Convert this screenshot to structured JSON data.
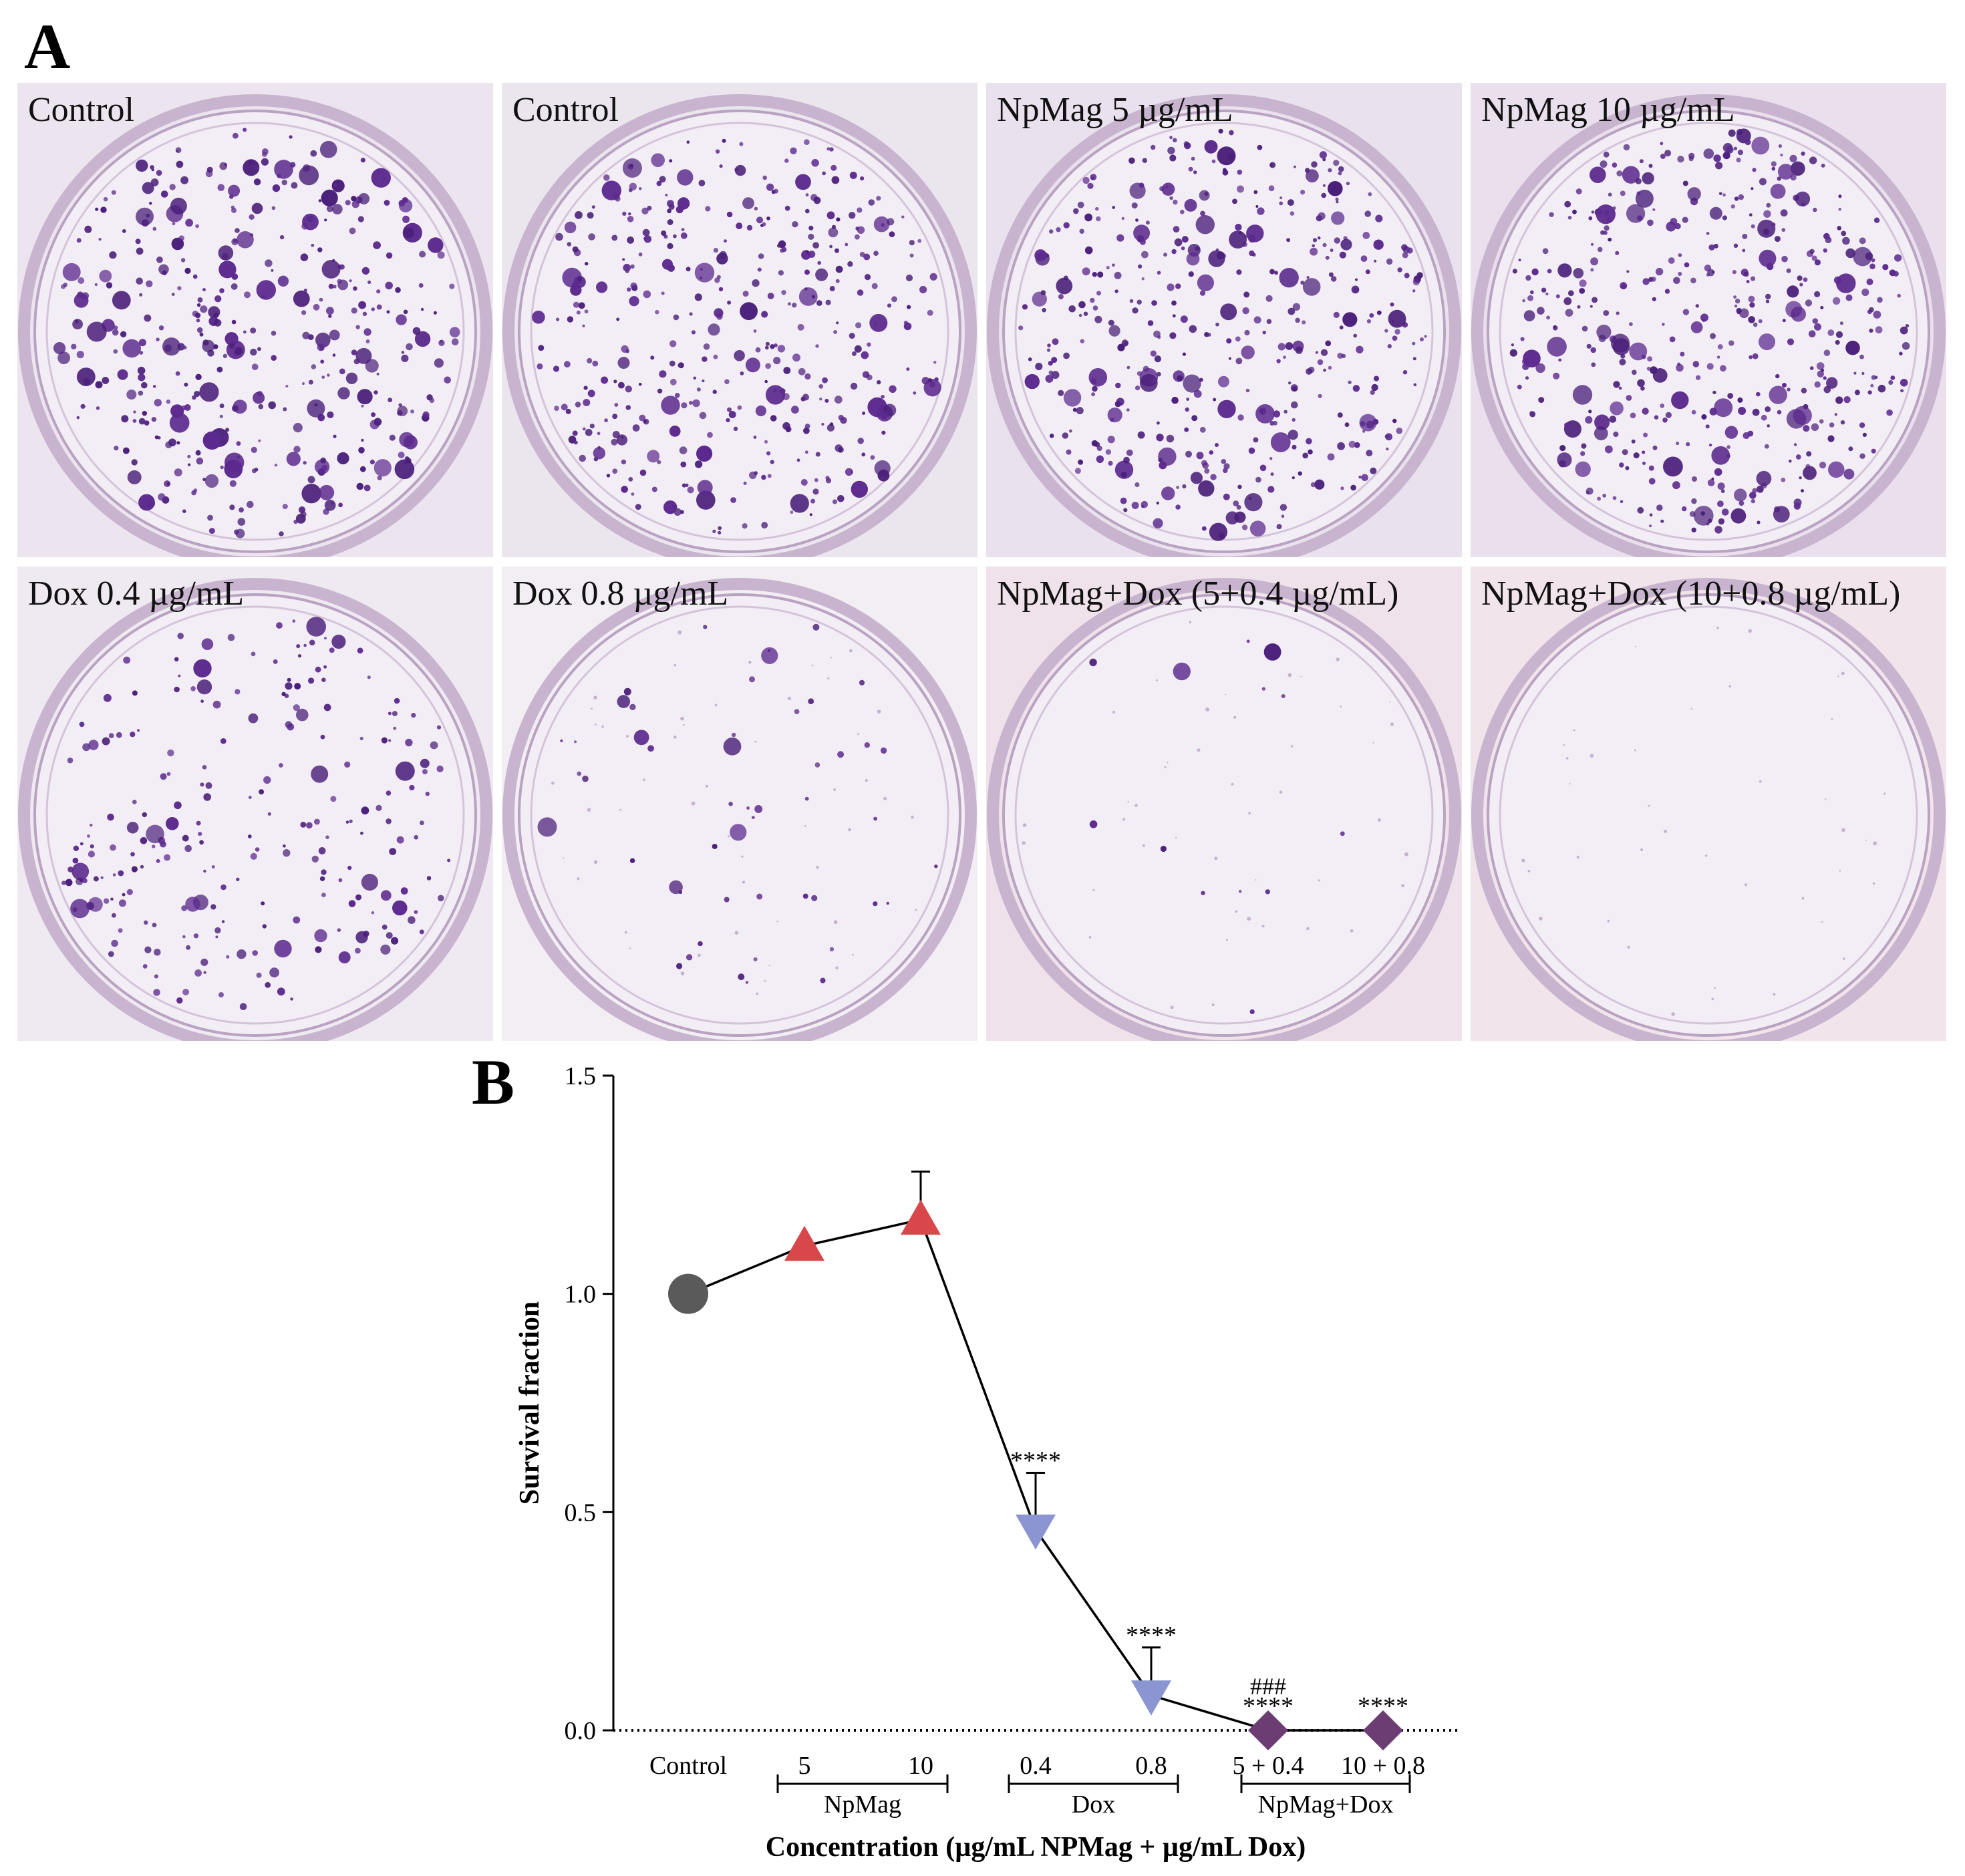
{
  "panel_a": {
    "letter": "A",
    "dishes": [
      {
        "label": "Control",
        "colony_density": 1.0,
        "tint": "#ece4ef"
      },
      {
        "label": "Control",
        "colony_density": 1.0,
        "tint": "#ebe5ee"
      },
      {
        "label": "NpMag 5 µg/mL",
        "colony_density": 1.05,
        "tint": "#e9e1ed"
      },
      {
        "label": "NpMag 10 µg/mL",
        "colony_density": 1.1,
        "tint": "#eadfec"
      },
      {
        "label": "Dox 0.4 µg/mL",
        "colony_density": 0.55,
        "tint": "#efe9f1"
      },
      {
        "label": "Dox 0.8 µg/mL",
        "colony_density": 0.12,
        "tint": "#f2eef4"
      },
      {
        "label": "NpMag+Dox (5+0.4 µg/mL)",
        "colony_density": 0.03,
        "tint": "#efe2ea"
      },
      {
        "label": "NpMag+Dox (10+0.8 µg/mL)",
        "colony_density": 0.0,
        "tint": "#f1e4ea"
      }
    ]
  },
  "panel_b": {
    "letter": "B"
  },
  "chart_data": {
    "type": "scatter",
    "ylabel": "Survival fraction",
    "xlabel": "Concentration (µg/mL NPMag + µg/mL Dox)",
    "ylim": [
      0,
      1.5
    ],
    "yticks": [
      "0.0",
      "0.5",
      "1.0",
      "1.5"
    ],
    "categories": [
      "Control",
      "5",
      "10",
      "0.4",
      "0.8",
      "5 + 0.4",
      "10 + 0.8"
    ],
    "groups": [
      {
        "label": "NpMag",
        "from": 1,
        "to": 2
      },
      {
        "label": "Dox",
        "from": 3,
        "to": 4
      },
      {
        "label": "NpMag+Dox",
        "from": 5,
        "to": 6
      }
    ],
    "points": [
      {
        "category": "Control",
        "value": 1.0,
        "error": 0.0,
        "marker": "circle",
        "color": "#5a5a5a",
        "annotation": ""
      },
      {
        "category": "5",
        "value": 1.11,
        "error": 0.0,
        "marker": "triangle-up",
        "color": "#d9474a",
        "annotation": ""
      },
      {
        "category": "10",
        "value": 1.17,
        "error": 0.11,
        "marker": "triangle-up",
        "color": "#d9474a",
        "annotation": ""
      },
      {
        "category": "0.4",
        "value": 0.46,
        "error": 0.13,
        "marker": "triangle-down",
        "color": "#8a95d2",
        "annotation": "****"
      },
      {
        "category": "0.8",
        "value": 0.08,
        "error": 0.11,
        "marker": "triangle-down",
        "color": "#8a95d2",
        "annotation": "****"
      },
      {
        "category": "5 + 0.4",
        "value": 0.0,
        "error": 0.0,
        "marker": "diamond",
        "color": "#6b3d73",
        "annotation": "****",
        "annotation2": "###"
      },
      {
        "category": "10 + 0.8",
        "value": 0.0,
        "error": 0.0,
        "marker": "diamond",
        "color": "#6b3d73",
        "annotation": "****"
      }
    ],
    "zero_line": "dotted"
  }
}
